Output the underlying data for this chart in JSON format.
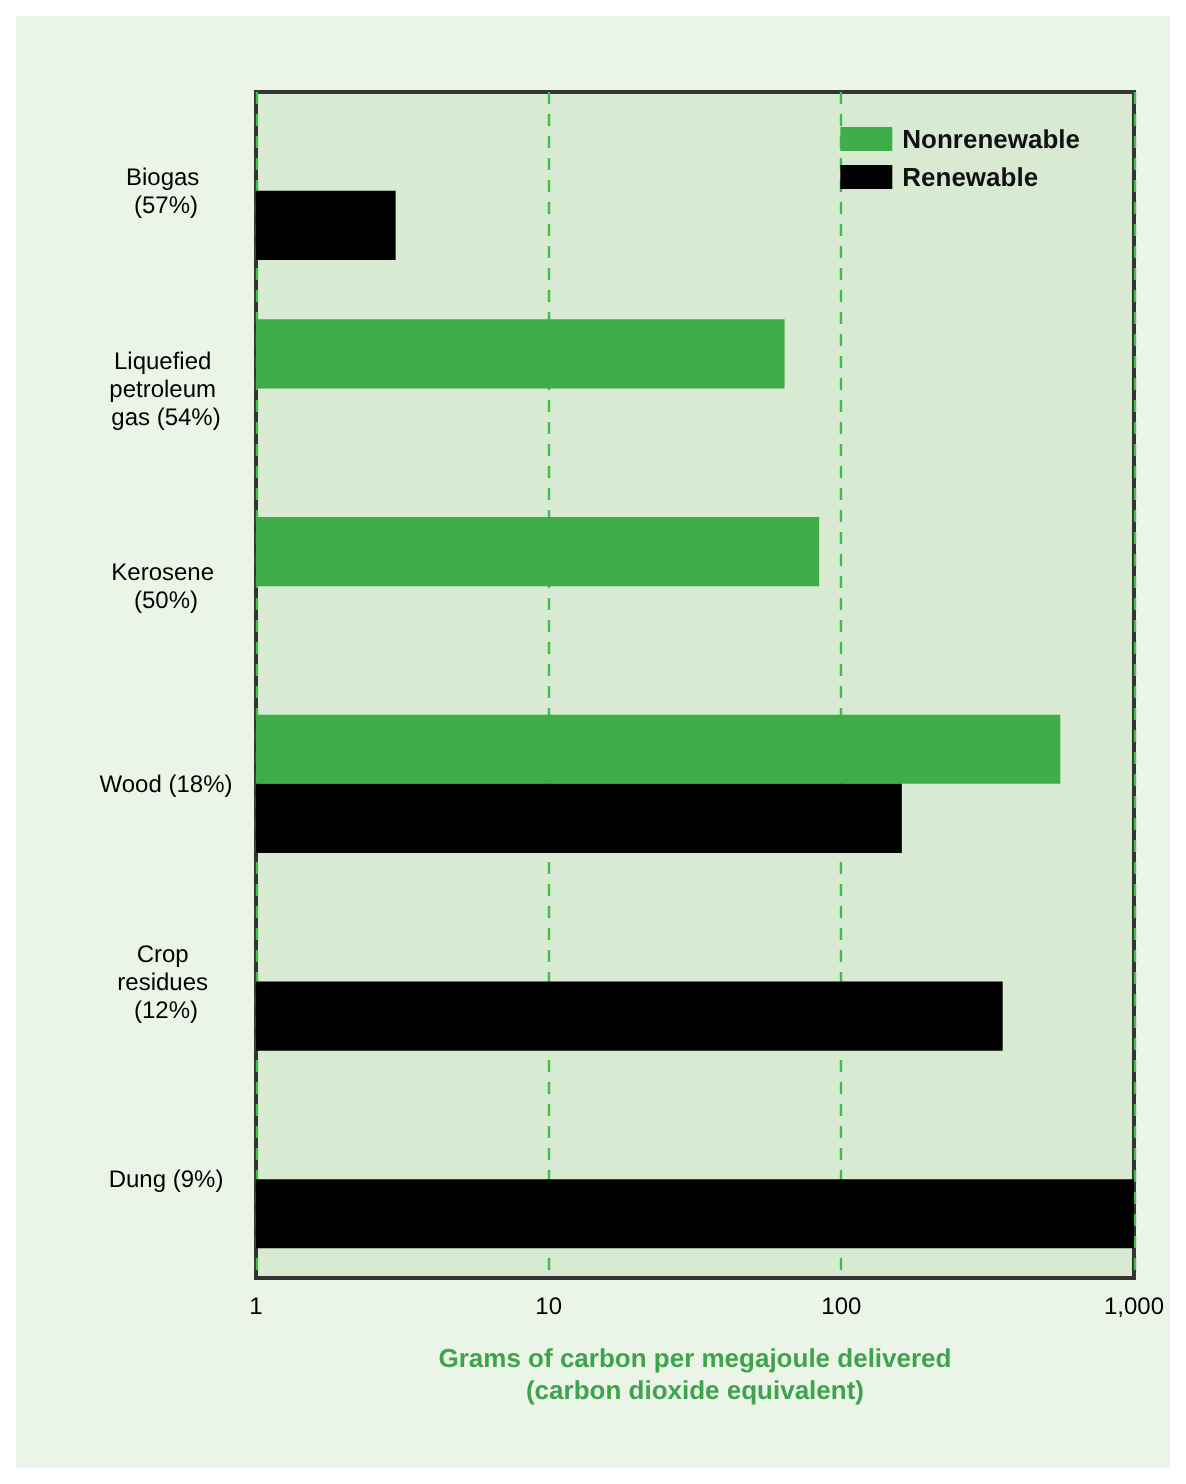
{
  "chart_data": {
    "type": "bar",
    "orientation": "horizontal",
    "log": "x",
    "xlabel": "Grams of carbon per megajoule delivered\n(carbon dioxide equivalent)",
    "categories": [
      "Biogas (57%)",
      "Liquefied petroleum gas (54%)",
      "Kerosene (50%)",
      "Wood (18%)",
      "Crop residues (12%)",
      "Dung (9%)"
    ],
    "series": [
      {
        "name": "Nonrenewable",
        "color": "#3fad4a",
        "values": [
          null,
          64,
          84,
          560,
          null,
          null
        ]
      },
      {
        "name": "Renewable",
        "color": "#000000",
        "values": [
          3,
          null,
          null,
          161,
          356,
          1000
        ]
      }
    ],
    "xlim": [
      1,
      1000
    ],
    "xticks": [
      1,
      10,
      100,
      {
        "value": 1000,
        "label": "1,000"
      }
    ],
    "grid": "x",
    "legend": "top right"
  }
}
